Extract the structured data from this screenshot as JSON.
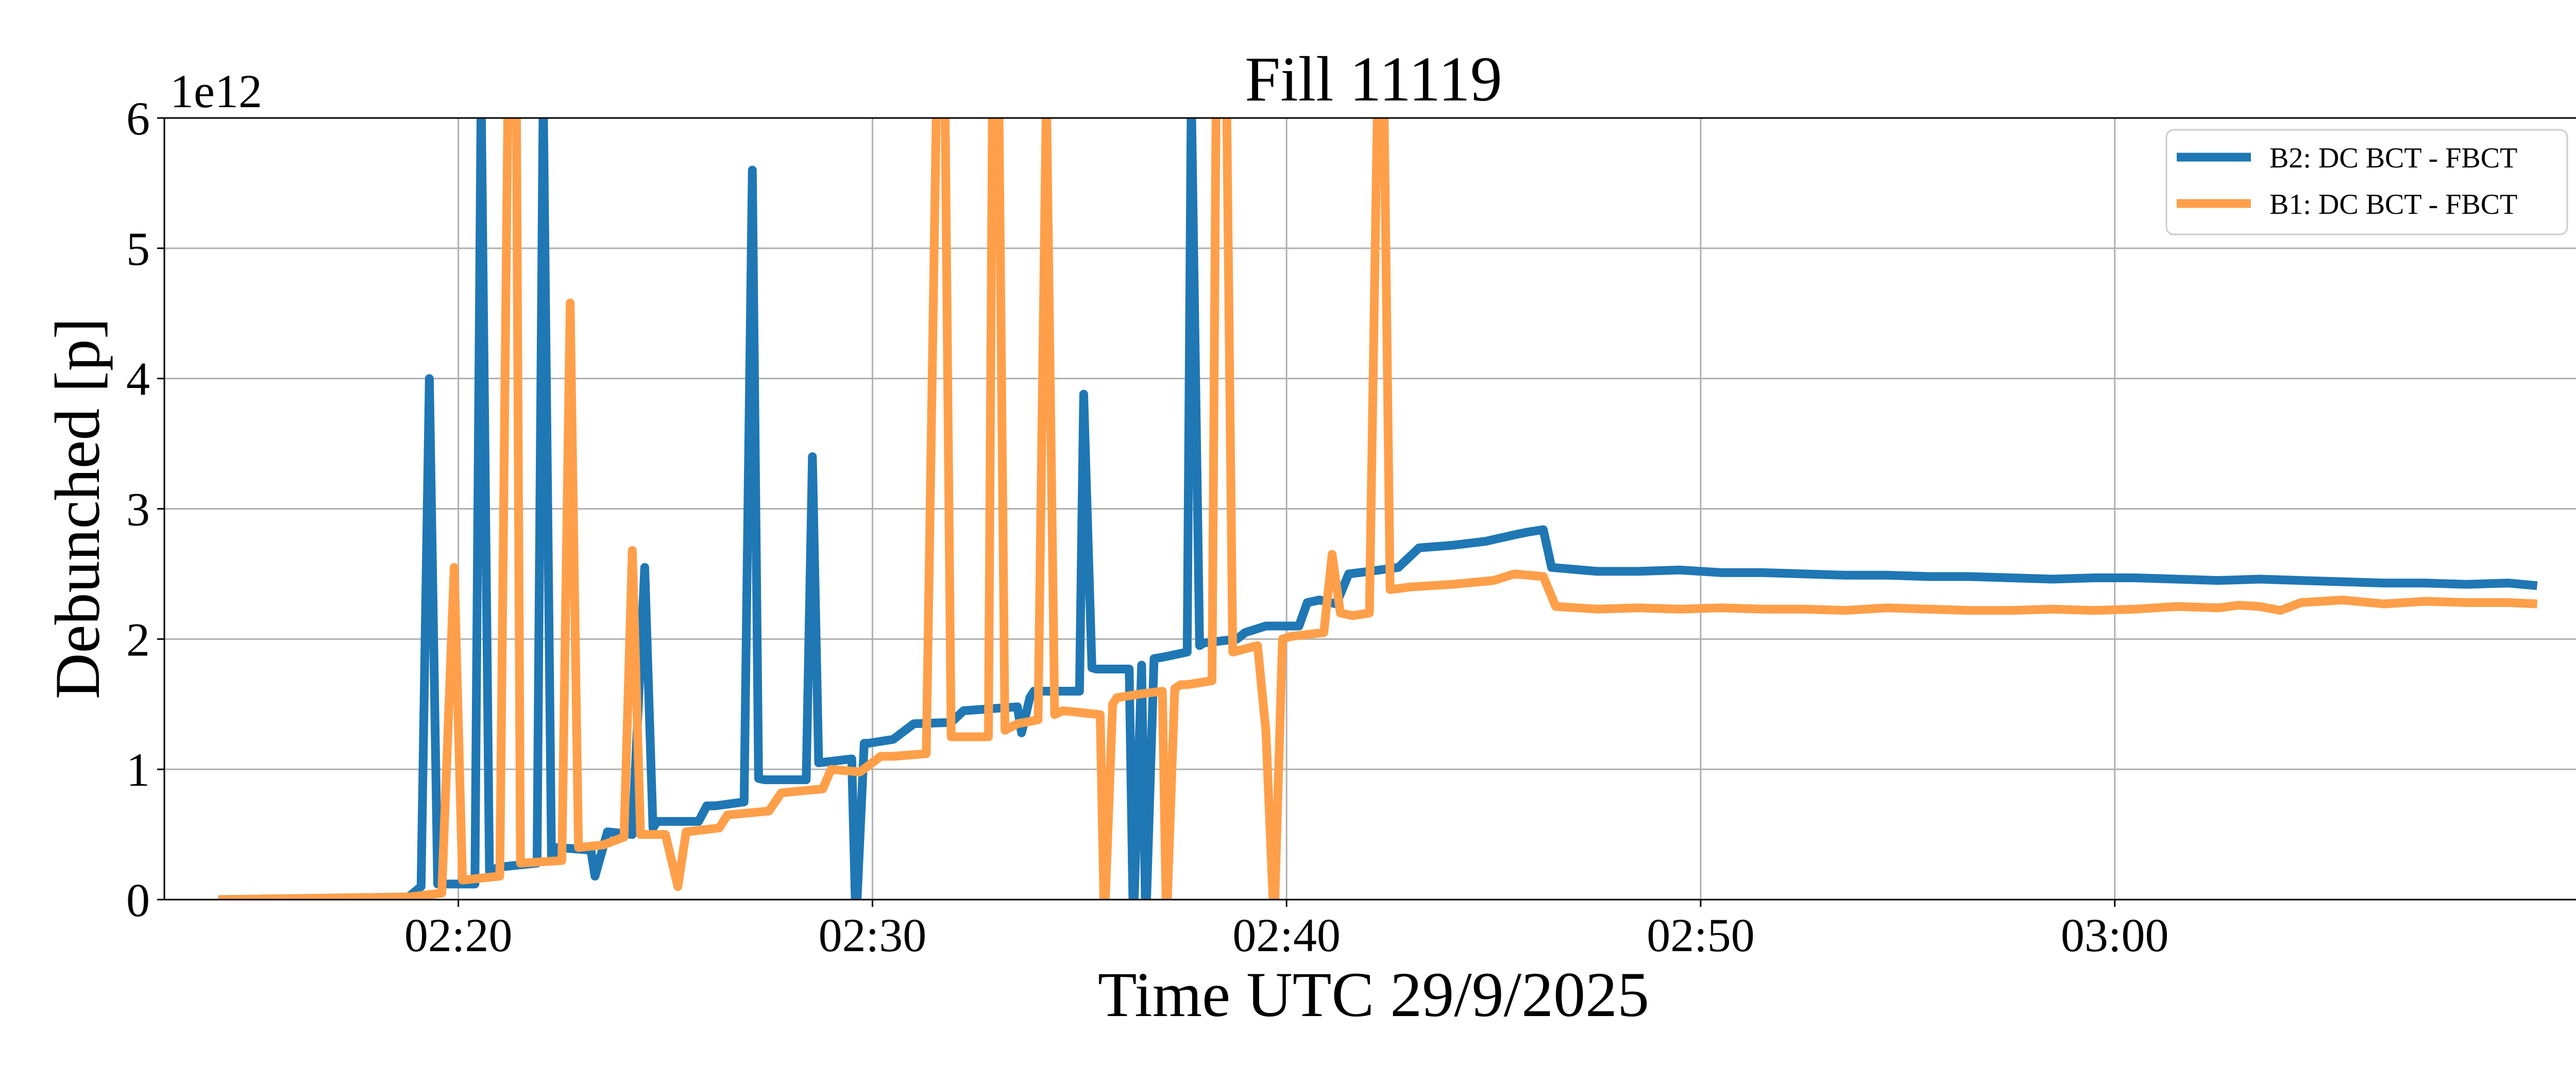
{
  "chart_data": {
    "type": "line",
    "title": "Fill 11119",
    "xlabel": "Time UTC 29/9/2025",
    "ylabel": "Debunched [p]",
    "y_offset_text": "1e12",
    "x_unit": "minutes after 02:00 UTC",
    "xlim": [
      12.9,
      71.3
    ],
    "ylim": [
      0,
      6
    ],
    "x_ticks": [
      {
        "value": 20,
        "label": "02:20"
      },
      {
        "value": 30,
        "label": "02:30"
      },
      {
        "value": 40,
        "label": "02:40"
      },
      {
        "value": 50,
        "label": "02:50"
      },
      {
        "value": 60,
        "label": "03:00"
      }
    ],
    "y_ticks": [
      {
        "value": 0,
        "label": "0"
      },
      {
        "value": 1,
        "label": "1"
      },
      {
        "value": 2,
        "label": "2"
      },
      {
        "value": 3,
        "label": "3"
      },
      {
        "value": 4,
        "label": "4"
      },
      {
        "value": 5,
        "label": "5"
      },
      {
        "value": 6,
        "label": "6"
      }
    ],
    "grid": true,
    "legend_position": "top-right",
    "series": [
      {
        "name": "B2: DC BCT - FBCT",
        "color": "#1f77b4",
        "x": [
          14.2,
          18.8,
          19.1,
          19.3,
          19.5,
          20.4,
          20.55,
          20.75,
          21.0,
          21.9,
          22.05,
          22.25,
          22.4,
          23.2,
          23.3,
          23.6,
          24.2,
          24.5,
          24.7,
          24.8,
          25.8,
          26.0,
          26.2,
          26.9,
          27.1,
          27.25,
          27.4,
          28.4,
          28.55,
          28.7,
          29.5,
          29.6,
          29.8,
          29.9,
          30.5,
          31.0,
          31.9,
          32.2,
          33.5,
          33.6,
          33.8,
          33.9,
          35.0,
          35.1,
          35.3,
          35.4,
          36.2,
          36.3,
          36.5,
          36.6,
          36.8,
          37.0,
          37.6,
          37.7,
          37.9,
          38.0,
          38.8,
          39.0,
          39.5,
          40.3,
          40.5,
          40.8,
          41.2,
          41.5,
          42.0,
          42.7,
          43.2,
          44.0,
          44.8,
          45.5,
          45.8,
          46.2,
          46.4,
          47.5,
          48.5,
          49.5,
          50.5,
          51.5,
          52.5,
          53.5,
          54.5,
          55.5,
          56.5,
          57.5,
          58.5,
          59.5,
          60.5,
          61.5,
          62.5,
          63.5,
          64.5,
          65.5,
          66.5,
          67.5,
          68.5,
          69.5,
          70.2
        ],
        "y": [
          0.0,
          0.02,
          0.1,
          4.0,
          0.12,
          0.12,
          6.2,
          0.22,
          0.25,
          0.28,
          6.2,
          0.32,
          0.4,
          0.38,
          0.18,
          0.52,
          0.5,
          2.55,
          0.55,
          0.6,
          0.6,
          0.72,
          0.72,
          0.75,
          5.6,
          0.93,
          0.92,
          0.92,
          3.4,
          1.05,
          1.08,
          -0.2,
          1.2,
          1.2,
          1.23,
          1.35,
          1.36,
          1.45,
          1.48,
          1.28,
          1.55,
          1.6,
          1.6,
          3.88,
          1.78,
          1.77,
          1.77,
          -0.2,
          1.8,
          -0.2,
          1.85,
          1.86,
          1.9,
          6.2,
          1.95,
          1.97,
          2.0,
          2.05,
          2.1,
          2.1,
          2.28,
          2.3,
          2.27,
          2.5,
          2.52,
          2.55,
          2.7,
          2.72,
          2.75,
          2.8,
          2.82,
          2.84,
          2.55,
          2.52,
          2.52,
          2.53,
          2.51,
          2.51,
          2.5,
          2.49,
          2.49,
          2.48,
          2.48,
          2.47,
          2.46,
          2.47,
          2.47,
          2.46,
          2.45,
          2.46,
          2.45,
          2.44,
          2.43,
          2.43,
          2.42,
          2.43,
          2.41
        ]
      },
      {
        "name": "B1: DC BCT - FBCT",
        "color": "#ff9f4a",
        "x": [
          14.2,
          18.8,
          19.6,
          19.9,
          20.1,
          21.0,
          21.2,
          21.4,
          21.5,
          22.5,
          22.7,
          22.9,
          23.5,
          24.0,
          24.2,
          24.4,
          25.0,
          25.3,
          25.5,
          26.3,
          26.5,
          27.5,
          27.8,
          28.8,
          29.0,
          29.7,
          30.2,
          30.5,
          31.3,
          31.55,
          31.75,
          31.9,
          32.4,
          32.8,
          32.9,
          33.05,
          33.2,
          33.5,
          34.0,
          34.2,
          34.4,
          34.6,
          35.5,
          35.6,
          35.8,
          35.9,
          36.5,
          37.0,
          37.1,
          37.3,
          37.45,
          37.6,
          38.2,
          38.3,
          38.55,
          38.7,
          39.3,
          39.5,
          39.7,
          39.9,
          40.1,
          40.9,
          41.1,
          41.3,
          41.6,
          42.0,
          42.2,
          42.35,
          42.5,
          43.0,
          44.0,
          45.0,
          45.5,
          46.2,
          46.5,
          47.5,
          48.5,
          49.5,
          50.5,
          51.5,
          52.5,
          53.5,
          54.5,
          55.5,
          56.5,
          57.5,
          58.5,
          59.5,
          60.5,
          61.5,
          62.5,
          63.0,
          63.5,
          64.0,
          64.5,
          65.5,
          66.5,
          67.5,
          68.5,
          69.5,
          70.2
        ],
        "y": [
          0.0,
          0.02,
          0.05,
          2.55,
          0.15,
          0.18,
          6.2,
          6.2,
          0.28,
          0.3,
          4.58,
          0.4,
          0.42,
          0.48,
          2.68,
          0.5,
          0.5,
          0.1,
          0.52,
          0.55,
          0.65,
          0.68,
          0.82,
          0.85,
          1.0,
          0.98,
          1.1,
          1.1,
          1.12,
          6.2,
          6.2,
          1.25,
          1.25,
          1.25,
          6.2,
          6.2,
          1.3,
          1.35,
          1.38,
          6.2,
          1.42,
          1.45,
          1.42,
          -0.2,
          1.5,
          1.55,
          1.58,
          1.6,
          -0.2,
          1.62,
          1.65,
          1.65,
          1.68,
          6.2,
          6.2,
          1.9,
          1.95,
          1.3,
          -0.2,
          2.0,
          2.02,
          2.05,
          2.65,
          2.2,
          2.18,
          2.2,
          6.2,
          6.2,
          2.38,
          2.4,
          2.42,
          2.45,
          2.5,
          2.48,
          2.25,
          2.23,
          2.24,
          2.23,
          2.24,
          2.23,
          2.23,
          2.22,
          2.24,
          2.23,
          2.22,
          2.22,
          2.23,
          2.22,
          2.23,
          2.25,
          2.24,
          2.26,
          2.25,
          2.22,
          2.28,
          2.3,
          2.27,
          2.29,
          2.28,
          2.28,
          2.27
        ]
      }
    ]
  }
}
